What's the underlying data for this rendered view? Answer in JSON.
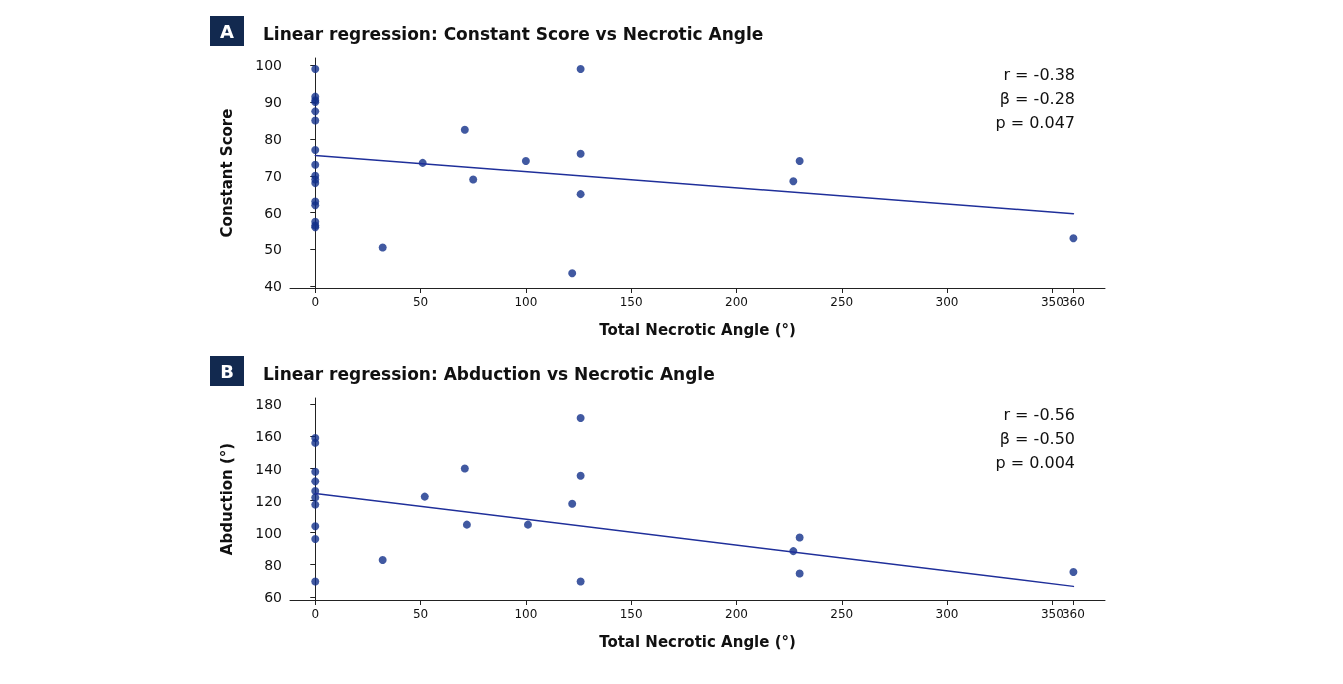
{
  "chart_data": [
    {
      "type": "scatter",
      "title": "Linear regression: Constant Score vs Necrotic Angle",
      "xlabel": "Total Necrotic Angle (°)",
      "ylabel": "Constant Score",
      "annotations": [
        "A",
        "r = -0.38",
        "β = -0.28",
        "p = 0.047"
      ],
      "grid": false,
      "xlim": [
        -12,
        375
      ],
      "ylim": [
        39.5,
        102
      ],
      "xticks": [
        0,
        50,
        100,
        150,
        200,
        250,
        300,
        350,
        360
      ],
      "yticks": [
        40,
        50,
        60,
        70,
        80,
        90,
        100
      ],
      "series": [
        {
          "color": "#12308a",
          "marker": "circle",
          "x": [
            0,
            0,
            0,
            0,
            0,
            0,
            0,
            0,
            0,
            0,
            0,
            0,
            0,
            0,
            0,
            0,
            32,
            51,
            71,
            75,
            100,
            122,
            126,
            126,
            126,
            227,
            230,
            360
          ],
          "values": [
            99,
            91.5,
            90.5,
            90,
            87.5,
            85,
            77,
            73,
            70,
            69,
            68,
            63,
            62,
            57.5,
            56.5,
            56,
            50.5,
            73.5,
            82.5,
            69,
            74,
            43.5,
            99,
            76,
            65,
            68.5,
            74,
            53
          ]
        },
        {
          "type": "line",
          "color": "#1f2f9a",
          "marker": "none",
          "x": [
            0,
            360
          ],
          "values": [
            75.5,
            59.7
          ]
        }
      ]
    },
    {
      "type": "scatter",
      "title": "Linear regression: Abduction vs Necrotic Angle",
      "xlabel": "Total Necrotic Angle (°)",
      "ylabel": "Abduction (°)",
      "annotations": [
        "B",
        "r = -0.56",
        "β = -0.50",
        "p = 0.004"
      ],
      "grid": false,
      "xlim": [
        -12,
        375
      ],
      "ylim": [
        58,
        184
      ],
      "xticks": [
        0,
        50,
        100,
        150,
        200,
        250,
        300,
        350,
        360
      ],
      "yticks": [
        60,
        80,
        100,
        120,
        140,
        160,
        180
      ],
      "series": [
        {
          "color": "#12308a",
          "marker": "circle",
          "x": [
            0,
            0,
            0,
            0,
            0,
            0,
            0,
            0,
            0,
            0,
            32,
            52,
            71,
            72,
            101,
            122,
            126,
            126,
            126,
            227,
            230,
            230,
            360
          ],
          "values": [
            159,
            156,
            138,
            132,
            126,
            122,
            117.5,
            104,
            96,
            69.5,
            83,
            122.5,
            140,
            105,
            105,
            118,
            171.5,
            135.5,
            69.5,
            88.5,
            97,
            74.5,
            75.5
          ]
        },
        {
          "type": "line",
          "color": "#1f2f9a",
          "marker": "none",
          "x": [
            0,
            360
          ],
          "values": [
            124.5,
            66.5
          ]
        }
      ]
    }
  ]
}
